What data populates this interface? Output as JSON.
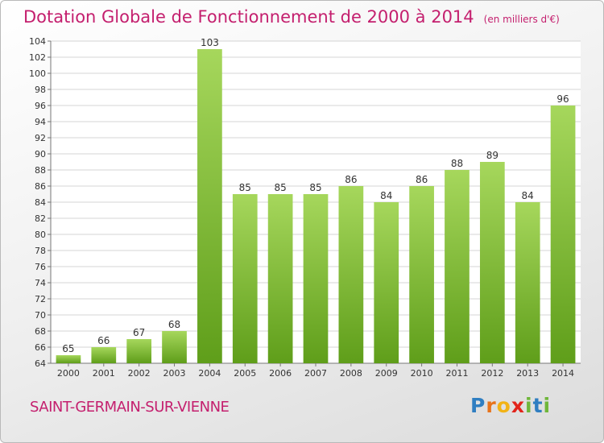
{
  "header": {
    "title": "Dotation Globale de Fonctionnement de 2000 à 2014",
    "unit": "(en milliers d'€)"
  },
  "footer": {
    "commune": "SAINT-GERMAIN-SUR-VIENNE",
    "brand": [
      "P",
      "r",
      "o",
      "x",
      "i",
      "t",
      "i"
    ],
    "brand_colors": [
      "#2f7ec1",
      "#e8731a",
      "#f2b316",
      "#e2241b",
      "#6fb63a",
      "#2f7ec1",
      "#6fb63a"
    ]
  },
  "colors": {
    "bar_light": "#a6d75c",
    "bar_dark": "#5f9e1a",
    "title": "#c41f6e",
    "grid": "#d4d4d4",
    "label": "#333333"
  },
  "chart_data": {
    "type": "bar",
    "title": "Dotation Globale de Fonctionnement de 2000 à 2014",
    "categories": [
      "2000",
      "2001",
      "2002",
      "2003",
      "2004",
      "2005",
      "2006",
      "2007",
      "2008",
      "2009",
      "2010",
      "2011",
      "2012",
      "2013",
      "2014"
    ],
    "values": [
      65,
      66,
      67,
      68,
      103,
      85,
      85,
      85,
      86,
      84,
      86,
      88,
      89,
      84,
      96
    ],
    "value_labels": [
      "65",
      "66",
      "67",
      "68",
      "103",
      "85",
      "85",
      "85",
      "86",
      "84",
      "86",
      "88",
      "89",
      "84",
      "96"
    ],
    "ylim": [
      64,
      104
    ],
    "yticks": [
      "64",
      "66",
      "68",
      "70",
      "72",
      "74",
      "76",
      "78",
      "80",
      "82",
      "84",
      "86",
      "88",
      "90",
      "92",
      "94",
      "96",
      "98",
      "100",
      "102",
      "104"
    ],
    "grid": true,
    "legend": "none"
  }
}
